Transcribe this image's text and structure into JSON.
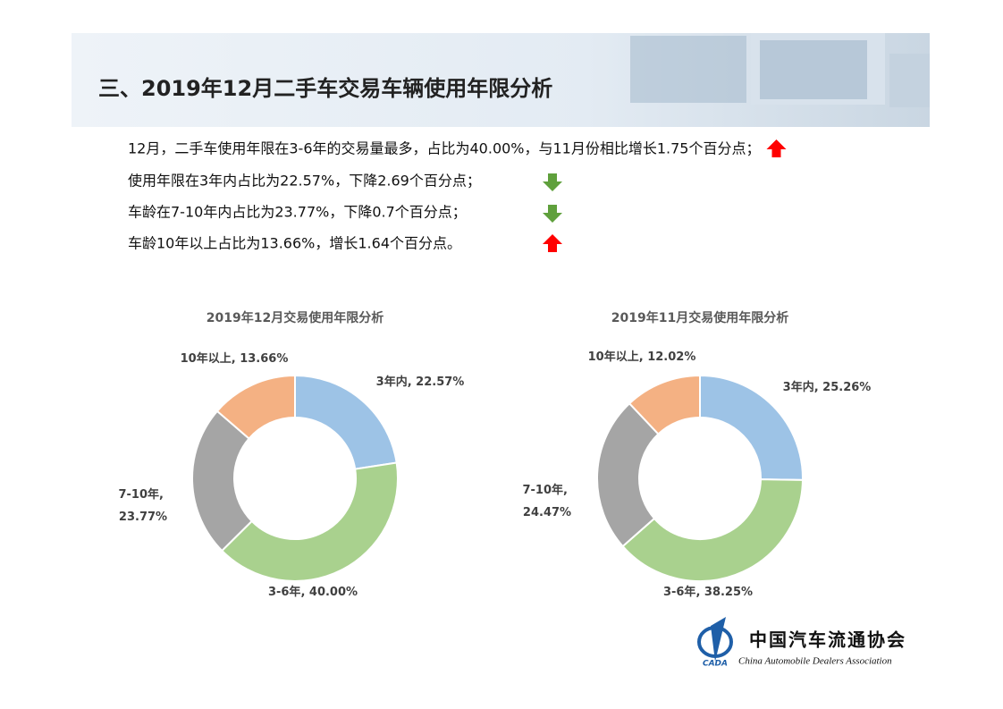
{
  "header": {
    "title": "三、2019年12月二手车交易车辆使用年限分析"
  },
  "bullets": [
    {
      "text": "12月，二手车使用年限在3-6年的交易量最多，占比为40.00%，与11月份相比增长1.75个百分点；",
      "trend": "up"
    },
    {
      "text": "使用年限在3年内占比为22.57%，下降2.69个百分点；",
      "trend": "down"
    },
    {
      "text": "车龄在7-10年内占比为23.77%，下降0.7个百分点；",
      "trend": "down"
    },
    {
      "text": "车龄10年以上占比为13.66%，增长1.64个百分点。",
      "trend": "up"
    }
  ],
  "chart_data": [
    {
      "type": "donut",
      "title": "2019年12月交易使用年限分析",
      "categories": [
        "3年内",
        "3-6年",
        "7-10年",
        "10年以上"
      ],
      "values": [
        22.57,
        40.0,
        23.77,
        13.66
      ],
      "value_labels": [
        "22.57%",
        "40.00%",
        "23.77%",
        "13.66%"
      ],
      "label_separator": ", ",
      "colors": [
        "#9dc3e6",
        "#a9d18e",
        "#a5a5a5",
        "#f4b183"
      ]
    },
    {
      "type": "donut",
      "title": "2019年11月交易使用年限分析",
      "categories": [
        "3年内",
        "3-6年",
        "7-10年",
        "10年以上"
      ],
      "values": [
        25.26,
        38.25,
        24.47,
        12.02
      ],
      "value_labels": [
        "25.26%",
        "38.25%",
        "24.47%",
        "12.02%"
      ],
      "label_separator": ", ",
      "colors": [
        "#9dc3e6",
        "#a9d18e",
        "#a5a5a5",
        "#f4b183"
      ]
    }
  ],
  "logo": {
    "name_cn": "中国汽车流通协会",
    "name_en": "China Automobile Dealers Association",
    "abbr": "CADA"
  }
}
